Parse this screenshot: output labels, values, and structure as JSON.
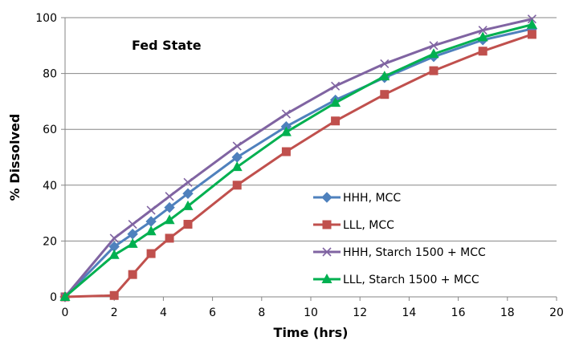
{
  "chart_data": {
    "type": "line",
    "annotation": "Fed State",
    "xlabel": "Time (hrs)",
    "ylabel": "% Dissolved",
    "xlim": [
      0,
      20
    ],
    "ylim": [
      0,
      100
    ],
    "xticks": [
      0,
      2,
      4,
      6,
      8,
      10,
      12,
      14,
      16,
      18,
      20
    ],
    "yticks": [
      0,
      20,
      40,
      60,
      80,
      100
    ],
    "grid": "horizontal",
    "legend_position": "center-right",
    "x": [
      0,
      2,
      2.75,
      3.5,
      4.25,
      5,
      7,
      9,
      11,
      13,
      15,
      17,
      19
    ],
    "series": [
      {
        "name": "HHH, MCC",
        "color": "#4F81BD",
        "marker": "diamond",
        "values": [
          0,
          18,
          22.5,
          27,
          32,
          37,
          50,
          61,
          70.5,
          78.5,
          86,
          92,
          96
        ]
      },
      {
        "name": "LLL, MCC",
        "color": "#C0504D",
        "marker": "square",
        "values": [
          0,
          0.5,
          8,
          15.5,
          21,
          26,
          40,
          52,
          63,
          72.5,
          81,
          88,
          94
        ]
      },
      {
        "name": "HHH, Starch 1500 + MCC",
        "color": "#8064A2",
        "marker": "x",
        "values": [
          0,
          21,
          26,
          31,
          36,
          41,
          54,
          65.5,
          75.5,
          83.5,
          90,
          95.5,
          99.5
        ]
      },
      {
        "name": "LLL, Starch 1500 + MCC",
        "color": "#00B050",
        "marker": "triangle",
        "values": [
          0,
          15,
          19,
          23.5,
          27.5,
          32.5,
          46.5,
          59,
          69.5,
          79,
          87,
          93,
          97.5
        ]
      }
    ]
  }
}
